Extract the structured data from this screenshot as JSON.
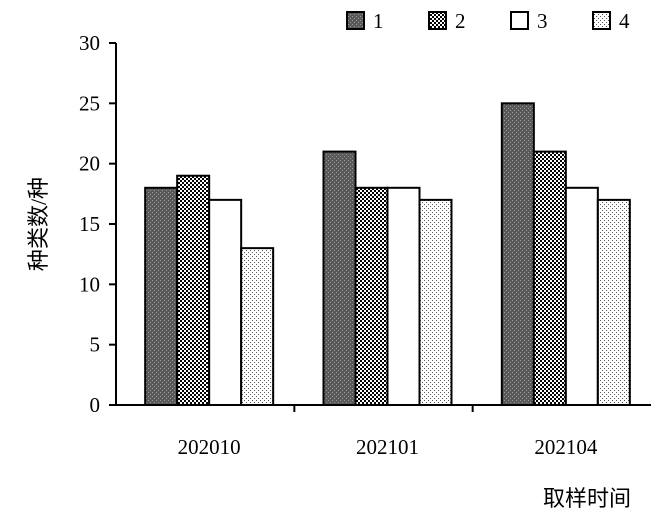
{
  "chart_data": {
    "type": "bar",
    "categories": [
      "202010",
      "202101",
      "202104"
    ],
    "series": [
      {
        "name": "1",
        "values": [
          18,
          21,
          25
        ],
        "fill": "dark",
        "color": "#6b6b6b"
      },
      {
        "name": "2",
        "values": [
          19,
          18,
          21
        ],
        "fill": "checker",
        "color": "#000000"
      },
      {
        "name": "3",
        "values": [
          17,
          18,
          18
        ],
        "fill": "white",
        "color": "#ffffff"
      },
      {
        "name": "4",
        "values": [
          13,
          17,
          17
        ],
        "fill": "fine-dots",
        "color": "#cfcfcf"
      }
    ],
    "title": "",
    "xlabel": "取样时间",
    "ylabel": "种类数/种",
    "ylim": [
      0,
      30
    ],
    "yticks": [
      "0",
      "5",
      "10",
      "15",
      "20",
      "25",
      "30"
    ],
    "grid": false,
    "legend_position": "top-right"
  }
}
